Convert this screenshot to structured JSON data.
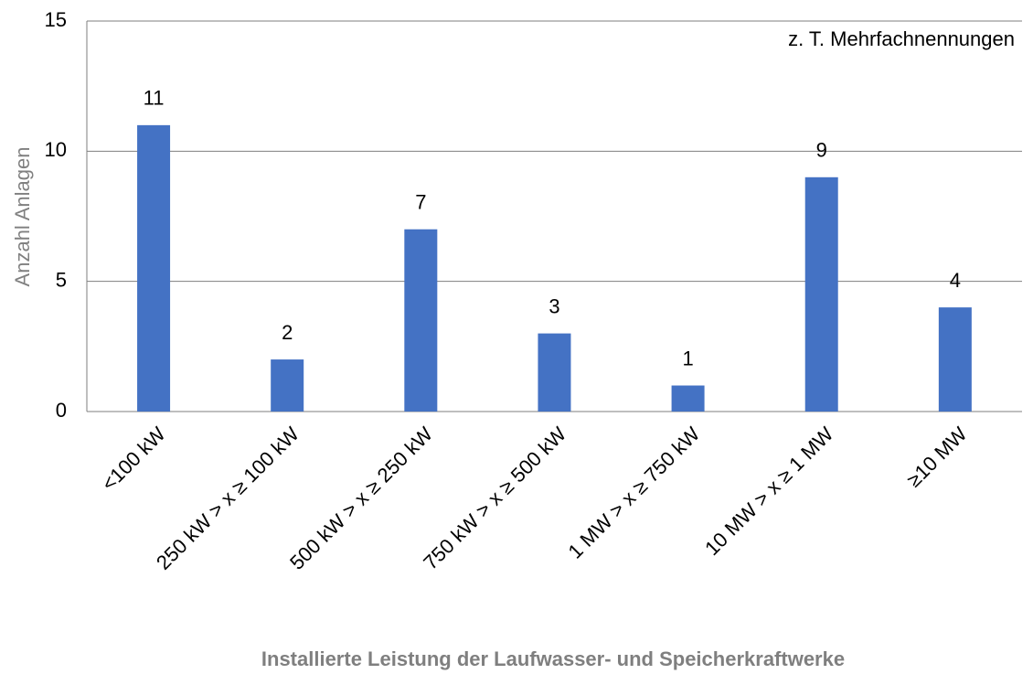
{
  "chart_data": {
    "type": "bar",
    "x_label": "Installierte Leistung der Laufwasser- und Speicherkraftwerke",
    "y_label": "Anzahl Anlagen",
    "annotation": "z. T. Mehrfachnennungen",
    "categories": [
      "<100 kW",
      "250 kW > x ≥ 100 kW",
      "500 kW > x ≥ 250 kW",
      "750 kW > x ≥ 500 kW",
      "1 MW > x ≥ 750 kW",
      "10 MW > x ≥ 1 MW",
      "≥10 MW"
    ],
    "values": [
      11,
      2,
      7,
      3,
      1,
      9,
      4
    ],
    "color": "#4472c4",
    "ylim": [
      0,
      15
    ],
    "yticks": [
      0,
      5,
      10,
      15
    ],
    "grid": true
  }
}
